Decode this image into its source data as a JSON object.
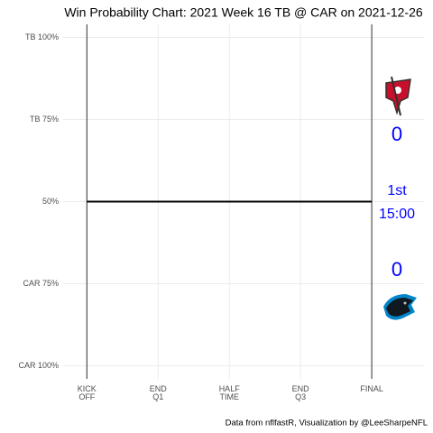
{
  "chart_data": {
    "type": "line",
    "title": "Win Probability Chart: 2021 Week 16 TB @ CAR on 2021-12-26",
    "caption": "Data from nflfastR, Visualization by @LeeSharpeNFL",
    "x": [
      0,
      60
    ],
    "values": [
      50,
      50
    ],
    "color": "#000000",
    "xlim": [
      -5,
      71
    ],
    "xticks": [
      {
        "value": 0,
        "label": "KICK\nOFF"
      },
      {
        "value": 15,
        "label": "END\nQ1"
      },
      {
        "value": 30,
        "label": "HALF\nTIME"
      },
      {
        "value": 45,
        "label": "END\nQ3"
      },
      {
        "value": 60,
        "label": "FINAL"
      }
    ],
    "ylim": [
      -4,
      104
    ],
    "yticks": [
      {
        "value": 0,
        "label": "CAR 100%"
      },
      {
        "value": 25,
        "label": "CAR 75%"
      },
      {
        "value": 50,
        "label": "50%"
      },
      {
        "value": 75,
        "label": "TB 75%"
      },
      {
        "value": 100,
        "label": "TB 100%"
      }
    ],
    "grid": true,
    "annotations": {
      "away_score": 0,
      "home_score": 0,
      "quarter": "1st",
      "clock": "15:00"
    },
    "annotation_color": "#0000ff"
  }
}
